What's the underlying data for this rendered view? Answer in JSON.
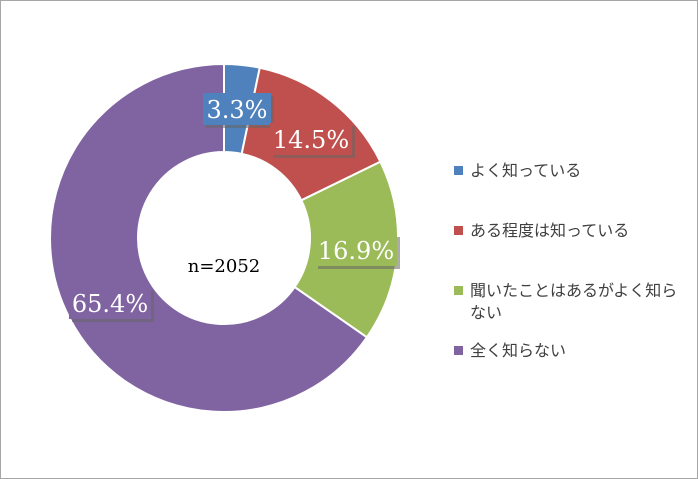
{
  "chart_data": {
    "type": "pie",
    "donut": true,
    "center_label": "n=2052",
    "categories": [
      "よく知っている",
      "ある程度は知っている",
      "聞いたことはあるがよく知らない",
      "全く知らない"
    ],
    "values": [
      3.3,
      14.5,
      16.9,
      65.4
    ],
    "data_labels": [
      "3.3%",
      "14.5%",
      "16.9%",
      "65.4%"
    ],
    "colors": [
      "#4f81bd",
      "#c0504d",
      "#9bbb59",
      "#8064a2"
    ],
    "legend_position": "right",
    "title": ""
  },
  "legend": {
    "items": [
      {
        "label": "よく知っている",
        "color": "#4f81bd"
      },
      {
        "label": "ある程度は知っている",
        "color": "#c0504d"
      },
      {
        "label": "聞いたことはあるがよく知らない",
        "color": "#9bbb59"
      },
      {
        "label": "全く知らない",
        "color": "#8064a2"
      }
    ]
  }
}
